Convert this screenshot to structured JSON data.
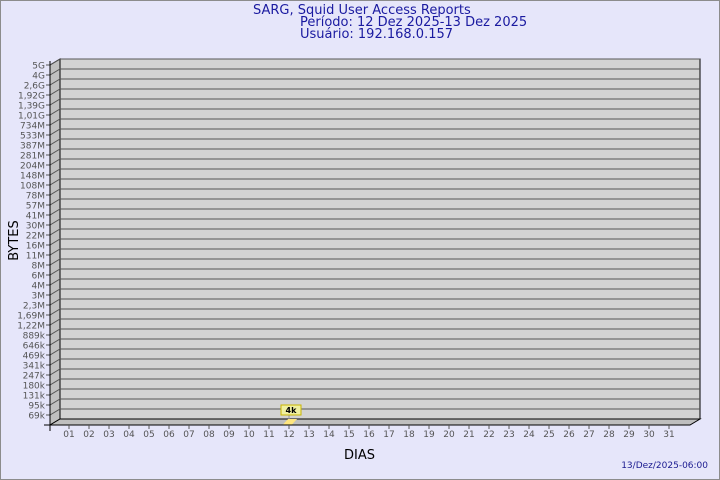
{
  "title": "SARG, Squid User Access Reports",
  "period": "Período: 12 Dez 2025-13 Dez 2025",
  "user": "Usuário: 192.168.0.157",
  "generated": "13/Dez/2025-06:00",
  "colors": {
    "background": "#e6e6fa",
    "title": "#1a1aa0",
    "wall": "#d3d3d3",
    "side_wall": "#c0c0c0",
    "bar": "#ffe680",
    "data_label_bg": "#f0f0a0"
  },
  "chart_data": {
    "type": "bar",
    "style": "3d",
    "xlabel": "DIAS",
    "ylabel": "BYTES",
    "y_scale": "log",
    "y_ticks": [
      "5G",
      "4G",
      "2,6G",
      "1,92G",
      "1,39G",
      "1,01G",
      "734M",
      "533M",
      "387M",
      "281M",
      "204M",
      "148M",
      "108M",
      "78M",
      "57M",
      "41M",
      "30M",
      "22M",
      "16M",
      "11M",
      "8M",
      "6M",
      "4M",
      "3M",
      "2,3M",
      "1,69M",
      "1,22M",
      "889k",
      "646k",
      "469k",
      "341k",
      "247k",
      "180k",
      "131k",
      "95k",
      "69k"
    ],
    "categories": [
      "01",
      "02",
      "03",
      "04",
      "05",
      "06",
      "07",
      "08",
      "09",
      "10",
      "11",
      "12",
      "13",
      "14",
      "15",
      "16",
      "17",
      "18",
      "19",
      "20",
      "21",
      "22",
      "23",
      "24",
      "25",
      "26",
      "27",
      "28",
      "29",
      "30",
      "31"
    ],
    "series": [
      {
        "values": [
          {
            "day": "12",
            "bytes": 4000,
            "label": "4k"
          }
        ]
      }
    ],
    "grid": true
  }
}
